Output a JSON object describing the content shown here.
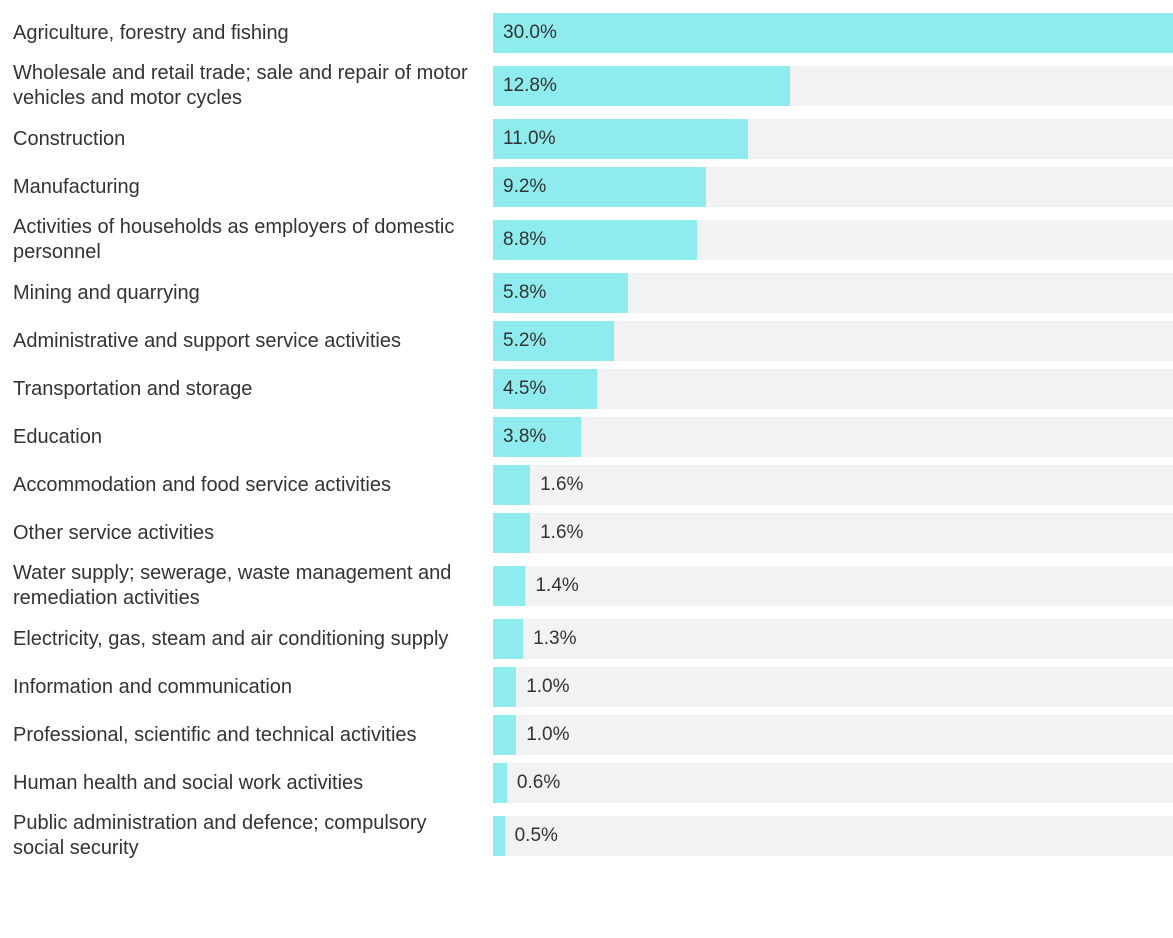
{
  "chart_data": {
    "type": "bar",
    "orientation": "horizontal",
    "color": "#8eebee",
    "track_color": "#f2f2f2",
    "categories": [
      "Agriculture, forestry and fishing",
      "Wholesale and retail trade; sale and repair of motor vehicles and motor cycles",
      "Construction",
      "Manufacturing",
      "Activities of households as employers of domestic personnel",
      "Mining and quarrying",
      "Administrative and support service activities",
      "Transportation and storage",
      "Education",
      "Accommodation and food service activities",
      "Other service activities",
      "Water supply; sewerage, waste management and remediation activities",
      "Electricity, gas, steam and air conditioning supply",
      "Information and communication",
      "Professional, scientific and technical activities",
      "Human health and social work activities",
      "Public administration and defence; compulsory social security"
    ],
    "values": [
      30,
      12.8,
      11,
      9.2,
      8.8,
      5.8,
      5.2,
      4.5,
      3.8,
      1.6,
      1.6,
      1.4,
      1.3,
      1,
      1,
      0.6,
      0.5
    ],
    "value_labels": [
      "30.0%",
      "12.8%",
      "11.0%",
      "9.2%",
      "8.8%",
      "5.8%",
      "5.2%",
      "4.5%",
      "3.8%",
      "1.6%",
      "1.6%",
      "1.4%",
      "1.3%",
      "1.0%",
      "1.0%",
      "0.6%",
      "0.5%"
    ]
  }
}
